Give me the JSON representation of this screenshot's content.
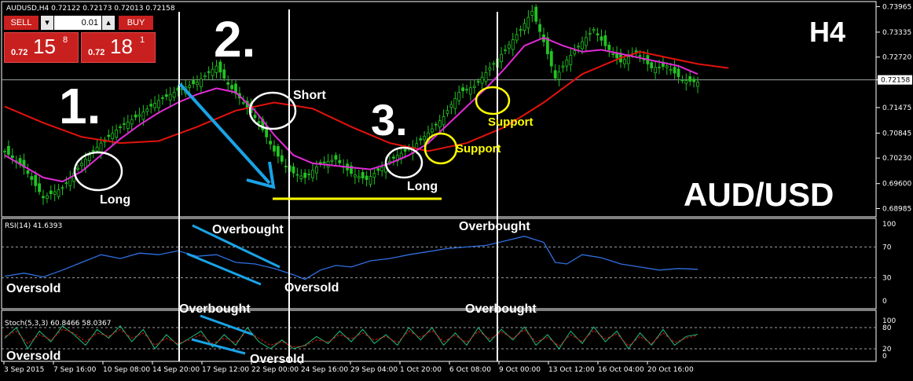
{
  "header": {
    "symbol_line": "AUDUSD,H4  0.72122 0.72173 0.72013 0.72158"
  },
  "trade_panel": {
    "sell_label": "SELL",
    "buy_label": "BUY",
    "lot_value": "0.01",
    "sell_prefix": "0.72",
    "sell_big": "15",
    "sell_sup": "8",
    "buy_prefix": "0.72",
    "buy_big": "18",
    "buy_sup": "1",
    "sell_color": "#c8201e",
    "buy_color": "#c8201e"
  },
  "chart_data": [
    {
      "type": "candlestick",
      "title": "",
      "timeframe_label": "H4",
      "pair_label": "AUD/USD",
      "current_price_label": "0.72158",
      "ylim": [
        0.688,
        0.7405
      ],
      "y_ticks": [
        "0.73965",
        "0.73335",
        "0.72720",
        "0.72158",
        "0.71475",
        "0.70845",
        "0.70230",
        "0.69600",
        "0.68985"
      ],
      "x_ticks": [
        "3 Sep 2015",
        "7 Sep 16:00",
        "10 Sep 08:00",
        "14 Sep 20:00",
        "17 Sep 12:00",
        "22 Sep 00:00",
        "24 Sep 16:00",
        "29 Sep 04:00",
        "1 Oct 20:00",
        "6 Oct 08:00",
        "9 Oct 00:00",
        "13 Oct 12:00",
        "16 Oct 04:00",
        "20 Oct 16:00"
      ],
      "price_path": [
        [
          0,
          0.704
        ],
        [
          5,
          0.7
        ],
        [
          10,
          0.6925
        ],
        [
          15,
          0.695
        ],
        [
          20,
          0.701
        ],
        [
          25,
          0.706
        ],
        [
          30,
          0.71
        ],
        [
          35,
          0.713
        ],
        [
          40,
          0.7165
        ],
        [
          45,
          0.719
        ],
        [
          50,
          0.721
        ],
        [
          55,
          0.725
        ],
        [
          58,
          0.7205
        ],
        [
          62,
          0.716
        ],
        [
          66,
          0.711
        ],
        [
          70,
          0.704
        ],
        [
          74,
          0.699
        ],
        [
          78,
          0.6975
        ],
        [
          82,
          0.701
        ],
        [
          86,
          0.702
        ],
        [
          90,
          0.6985
        ],
        [
          94,
          0.697
        ],
        [
          98,
          0.7
        ],
        [
          102,
          0.703
        ],
        [
          106,
          0.705
        ],
        [
          110,
          0.7085
        ],
        [
          114,
          0.7125
        ],
        [
          118,
          0.7185
        ],
        [
          122,
          0.72
        ],
        [
          126,
          0.7245
        ],
        [
          130,
          0.729
        ],
        [
          134,
          0.734
        ],
        [
          137,
          0.7385
        ],
        [
          140,
          0.731
        ],
        [
          143,
          0.722
        ],
        [
          146,
          0.7265
        ],
        [
          150,
          0.731
        ],
        [
          153,
          0.734
        ],
        [
          156,
          0.73
        ],
        [
          160,
          0.726
        ],
        [
          164,
          0.7285
        ],
        [
          168,
          0.7245
        ],
        [
          172,
          0.725
        ],
        [
          176,
          0.7215
        ],
        [
          180,
          0.721
        ]
      ],
      "ma_fast": [
        [
          0,
          0.703
        ],
        [
          10,
          0.6975
        ],
        [
          15,
          0.6965
        ],
        [
          20,
          0.699
        ],
        [
          25,
          0.703
        ],
        [
          30,
          0.707
        ],
        [
          35,
          0.7105
        ],
        [
          40,
          0.7135
        ],
        [
          45,
          0.716
        ],
        [
          50,
          0.718
        ],
        [
          55,
          0.7195
        ],
        [
          60,
          0.7185
        ],
        [
          65,
          0.714
        ],
        [
          70,
          0.708
        ],
        [
          75,
          0.703
        ],
        [
          80,
          0.701
        ],
        [
          85,
          0.7005
        ],
        [
          90,
          0.7
        ],
        [
          95,
          0.6995
        ],
        [
          100,
          0.701
        ],
        [
          105,
          0.703
        ],
        [
          110,
          0.706
        ],
        [
          115,
          0.7105
        ],
        [
          120,
          0.715
        ],
        [
          125,
          0.7195
        ],
        [
          130,
          0.7245
        ],
        [
          135,
          0.73
        ],
        [
          140,
          0.732
        ],
        [
          145,
          0.73
        ],
        [
          150,
          0.7285
        ],
        [
          155,
          0.729
        ],
        [
          160,
          0.728
        ],
        [
          165,
          0.727
        ],
        [
          170,
          0.726
        ],
        [
          175,
          0.725
        ],
        [
          180,
          0.723
        ]
      ],
      "ma_slow": [
        [
          0,
          0.715
        ],
        [
          10,
          0.711
        ],
        [
          20,
          0.7075
        ],
        [
          30,
          0.706
        ],
        [
          40,
          0.7065
        ],
        [
          50,
          0.71
        ],
        [
          60,
          0.714
        ],
        [
          70,
          0.716
        ],
        [
          80,
          0.7145
        ],
        [
          90,
          0.71
        ],
        [
          100,
          0.706
        ],
        [
          110,
          0.704
        ],
        [
          120,
          0.706
        ],
        [
          130,
          0.71
        ],
        [
          140,
          0.716
        ],
        [
          150,
          0.723
        ],
        [
          160,
          0.727
        ],
        [
          165,
          0.7285
        ],
        [
          170,
          0.7275
        ],
        [
          180,
          0.7255
        ],
        [
          188,
          0.7245
        ]
      ],
      "annotations": [
        "1.",
        "2.",
        "3.",
        "Long",
        "Short",
        "Long",
        "Support",
        "Support"
      ]
    },
    {
      "type": "line",
      "title": "RSI(14) 41.6393",
      "ylim": [
        0,
        100
      ],
      "y_ticks": [
        "100",
        "70",
        "30",
        "0"
      ],
      "levels": [
        70,
        30
      ],
      "series": [
        {
          "values": [
            [
              0,
              32
            ],
            [
              5,
              36
            ],
            [
              10,
              31
            ],
            [
              15,
              40
            ],
            [
              20,
              50
            ],
            [
              25,
              60
            ],
            [
              30,
              55
            ],
            [
              35,
              62
            ],
            [
              40,
              60
            ],
            [
              45,
              65
            ],
            [
              50,
              58
            ],
            [
              55,
              60
            ],
            [
              60,
              50
            ],
            [
              65,
              48
            ],
            [
              70,
              42
            ],
            [
              75,
              34
            ],
            [
              78,
              28
            ],
            [
              82,
              40
            ],
            [
              86,
              46
            ],
            [
              90,
              44
            ],
            [
              95,
              52
            ],
            [
              100,
              55
            ],
            [
              105,
              60
            ],
            [
              110,
              64
            ],
            [
              115,
              68
            ],
            [
              120,
              70
            ],
            [
              125,
              72
            ],
            [
              130,
              78
            ],
            [
              135,
              84
            ],
            [
              140,
              76
            ],
            [
              143,
              50
            ],
            [
              146,
              48
            ],
            [
              150,
              60
            ],
            [
              155,
              56
            ],
            [
              160,
              48
            ],
            [
              165,
              44
            ],
            [
              170,
              40
            ],
            [
              175,
              42
            ],
            [
              180,
              41
            ]
          ]
        }
      ],
      "annotations": [
        "Overbought",
        "Oversold",
        "Overbought",
        "Oversold"
      ]
    },
    {
      "type": "line",
      "title": "Stoch(5,3,3) 60.8466 58.0367",
      "ylim": [
        0,
        100
      ],
      "y_ticks": [
        "100",
        "80",
        "20",
        "0"
      ],
      "levels": [
        80,
        20
      ],
      "series": [
        {
          "values": [
            [
              0,
              50
            ],
            [
              3,
              80
            ],
            [
              6,
              20
            ],
            [
              9,
              70
            ],
            [
              12,
              40
            ],
            [
              15,
              85
            ],
            [
              18,
              60
            ],
            [
              21,
              30
            ],
            [
              24,
              75
            ],
            [
              27,
              50
            ],
            [
              30,
              85
            ],
            [
              33,
              40
            ],
            [
              36,
              75
            ],
            [
              39,
              20
            ],
            [
              42,
              60
            ],
            [
              45,
              30
            ],
            [
              48,
              50
            ],
            [
              51,
              70
            ],
            [
              54,
              25
            ],
            [
              57,
              60
            ],
            [
              60,
              30
            ],
            [
              63,
              80
            ],
            [
              66,
              40
            ],
            [
              69,
              20
            ],
            [
              72,
              45
            ],
            [
              75,
              20
            ],
            [
              78,
              30
            ],
            [
              81,
              55
            ],
            [
              84,
              35
            ],
            [
              87,
              70
            ],
            [
              90,
              40
            ],
            [
              93,
              75
            ],
            [
              96,
              35
            ],
            [
              99,
              60
            ],
            [
              102,
              30
            ],
            [
              105,
              80
            ],
            [
              108,
              45
            ],
            [
              111,
              80
            ],
            [
              114,
              30
            ],
            [
              117,
              65
            ],
            [
              120,
              30
            ],
            [
              123,
              80
            ],
            [
              126,
              40
            ],
            [
              129,
              75
            ],
            [
              132,
              45
            ],
            [
              135,
              82
            ],
            [
              138,
              30
            ],
            [
              141,
              60
            ],
            [
              144,
              20
            ],
            [
              147,
              70
            ],
            [
              150,
              35
            ],
            [
              153,
              82
            ],
            [
              156,
              40
            ],
            [
              159,
              70
            ],
            [
              162,
              20
            ],
            [
              165,
              65
            ],
            [
              168,
              30
            ],
            [
              171,
              75
            ],
            [
              174,
              30
            ],
            [
              177,
              55
            ],
            [
              180,
              61
            ]
          ]
        },
        {
          "values": [
            [
              0,
              55
            ],
            [
              3,
              70
            ],
            [
              6,
              35
            ],
            [
              9,
              60
            ],
            [
              12,
              45
            ],
            [
              15,
              75
            ],
            [
              18,
              65
            ],
            [
              21,
              40
            ],
            [
              24,
              65
            ],
            [
              27,
              55
            ],
            [
              30,
              75
            ],
            [
              33,
              50
            ],
            [
              36,
              65
            ],
            [
              39,
              30
            ],
            [
              42,
              50
            ],
            [
              45,
              35
            ],
            [
              48,
              45
            ],
            [
              51,
              60
            ],
            [
              54,
              35
            ],
            [
              57,
              50
            ],
            [
              60,
              38
            ],
            [
              63,
              70
            ],
            [
              66,
              50
            ],
            [
              69,
              30
            ],
            [
              72,
              40
            ],
            [
              75,
              25
            ],
            [
              78,
              28
            ],
            [
              81,
              45
            ],
            [
              84,
              40
            ],
            [
              87,
              60
            ],
            [
              90,
              48
            ],
            [
              93,
              65
            ],
            [
              96,
              45
            ],
            [
              99,
              55
            ],
            [
              102,
              38
            ],
            [
              105,
              70
            ],
            [
              108,
              52
            ],
            [
              111,
              72
            ],
            [
              114,
              40
            ],
            [
              117,
              58
            ],
            [
              120,
              38
            ],
            [
              123,
              70
            ],
            [
              126,
              48
            ],
            [
              129,
              68
            ],
            [
              132,
              50
            ],
            [
              135,
              74
            ],
            [
              138,
              40
            ],
            [
              141,
              52
            ],
            [
              144,
              28
            ],
            [
              147,
              60
            ],
            [
              150,
              40
            ],
            [
              153,
              72
            ],
            [
              156,
              48
            ],
            [
              159,
              62
            ],
            [
              162,
              28
            ],
            [
              165,
              55
            ],
            [
              168,
              35
            ],
            [
              171,
              65
            ],
            [
              174,
              38
            ],
            [
              177,
              50
            ],
            [
              180,
              58
            ]
          ]
        }
      ],
      "annotations": [
        "Overbought",
        "Oversold",
        "Overbought",
        "Oversold"
      ]
    }
  ]
}
